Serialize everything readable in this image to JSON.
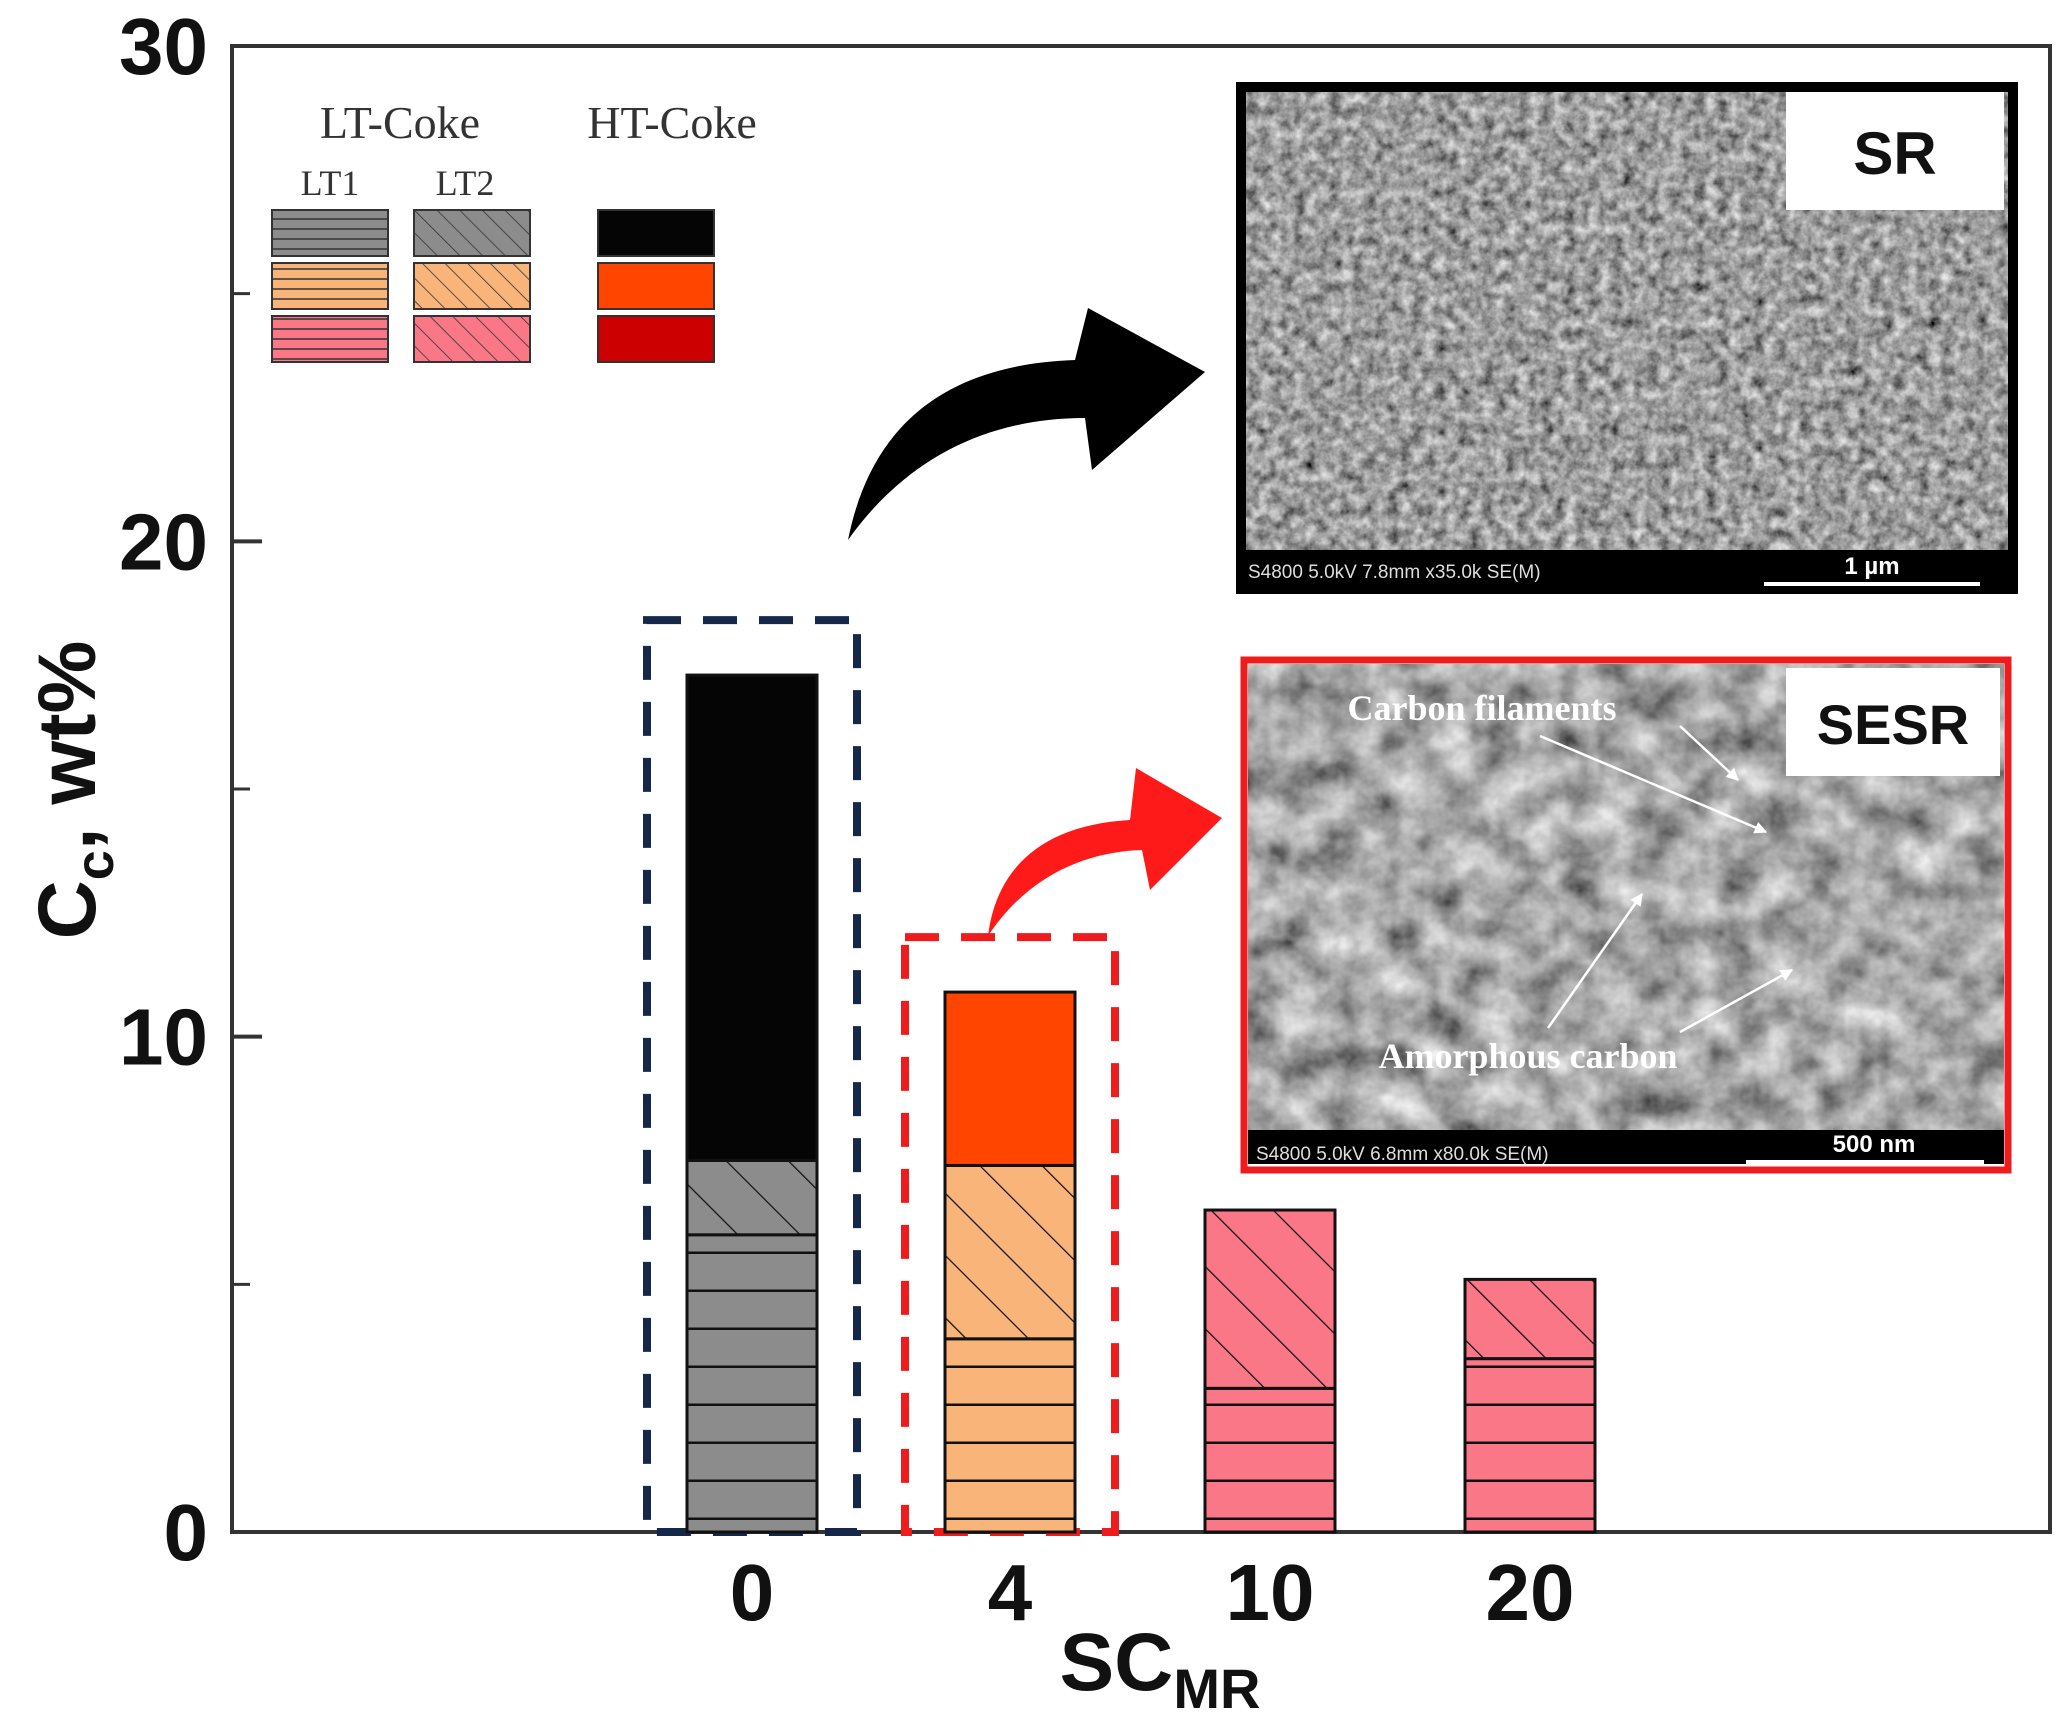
{
  "chart_data": {
    "type": "bar",
    "stacked": true,
    "categories": [
      "0",
      "4",
      "10",
      "20"
    ],
    "ylim": [
      0,
      30
    ],
    "yticks": [
      "0",
      "10",
      "20",
      "30"
    ],
    "ylabel": "C",
    "ylabel_sub": "c",
    "ylabel_suffix": ", wt%",
    "xlabel": "SC",
    "xlabel_sub": "MR",
    "series": [
      {
        "key": "LT1",
        "values": [
          6.0,
          3.9,
          2.9,
          3.5
        ]
      },
      {
        "key": "LT2",
        "values": [
          1.5,
          3.5,
          3.6,
          1.6
        ]
      },
      {
        "key": "HT",
        "values": [
          9.8,
          3.5,
          0.0,
          0.0
        ]
      }
    ],
    "bar_colors": [
      {
        "lt1": "#8c8c8c",
        "lt2": "#8c8c8c",
        "ht": "#050505"
      },
      {
        "lt1": "#f8b479",
        "lt2": "#f8b479",
        "ht": "#ff4500"
      },
      {
        "lt1": "#f97786",
        "lt2": "#f97786",
        "ht": "#cc0000"
      },
      {
        "lt1": "#f97786",
        "lt2": "#f97786",
        "ht": "#cc0000"
      }
    ],
    "legend": {
      "position": "top-left",
      "group_lt": "LT-Coke",
      "group_ht": "HT-Coke",
      "col_lt1": "LT1",
      "col_lt2": "LT2",
      "rows": [
        {
          "lt": "#8c8c8c",
          "ht": "#050505"
        },
        {
          "lt": "#f8b479",
          "ht": "#ff4500"
        },
        {
          "lt": "#f97786",
          "ht": "#cc0000"
        }
      ]
    },
    "highlight_boxes": [
      {
        "category": "0",
        "color": "#16284a"
      },
      {
        "category": "4",
        "color": "#ee1c1c"
      }
    ]
  },
  "insets": {
    "sr": {
      "label": "SR",
      "info": "S4800 5.0kV 7.8mm x35.0k SE(M)",
      "scale": "1 µm",
      "border_color": "#000000",
      "arrow_color": "#000000"
    },
    "sesr": {
      "label": "SESR",
      "info": "S4800 5.0kV 6.8mm x80.0k SE(M)",
      "scale": "500 nm",
      "annotation_filaments": "Carbon filaments",
      "annotation_amorphous": "Amorphous carbon",
      "border_color": "#ee1c1c",
      "arrow_color": "#ff1a1a"
    }
  }
}
